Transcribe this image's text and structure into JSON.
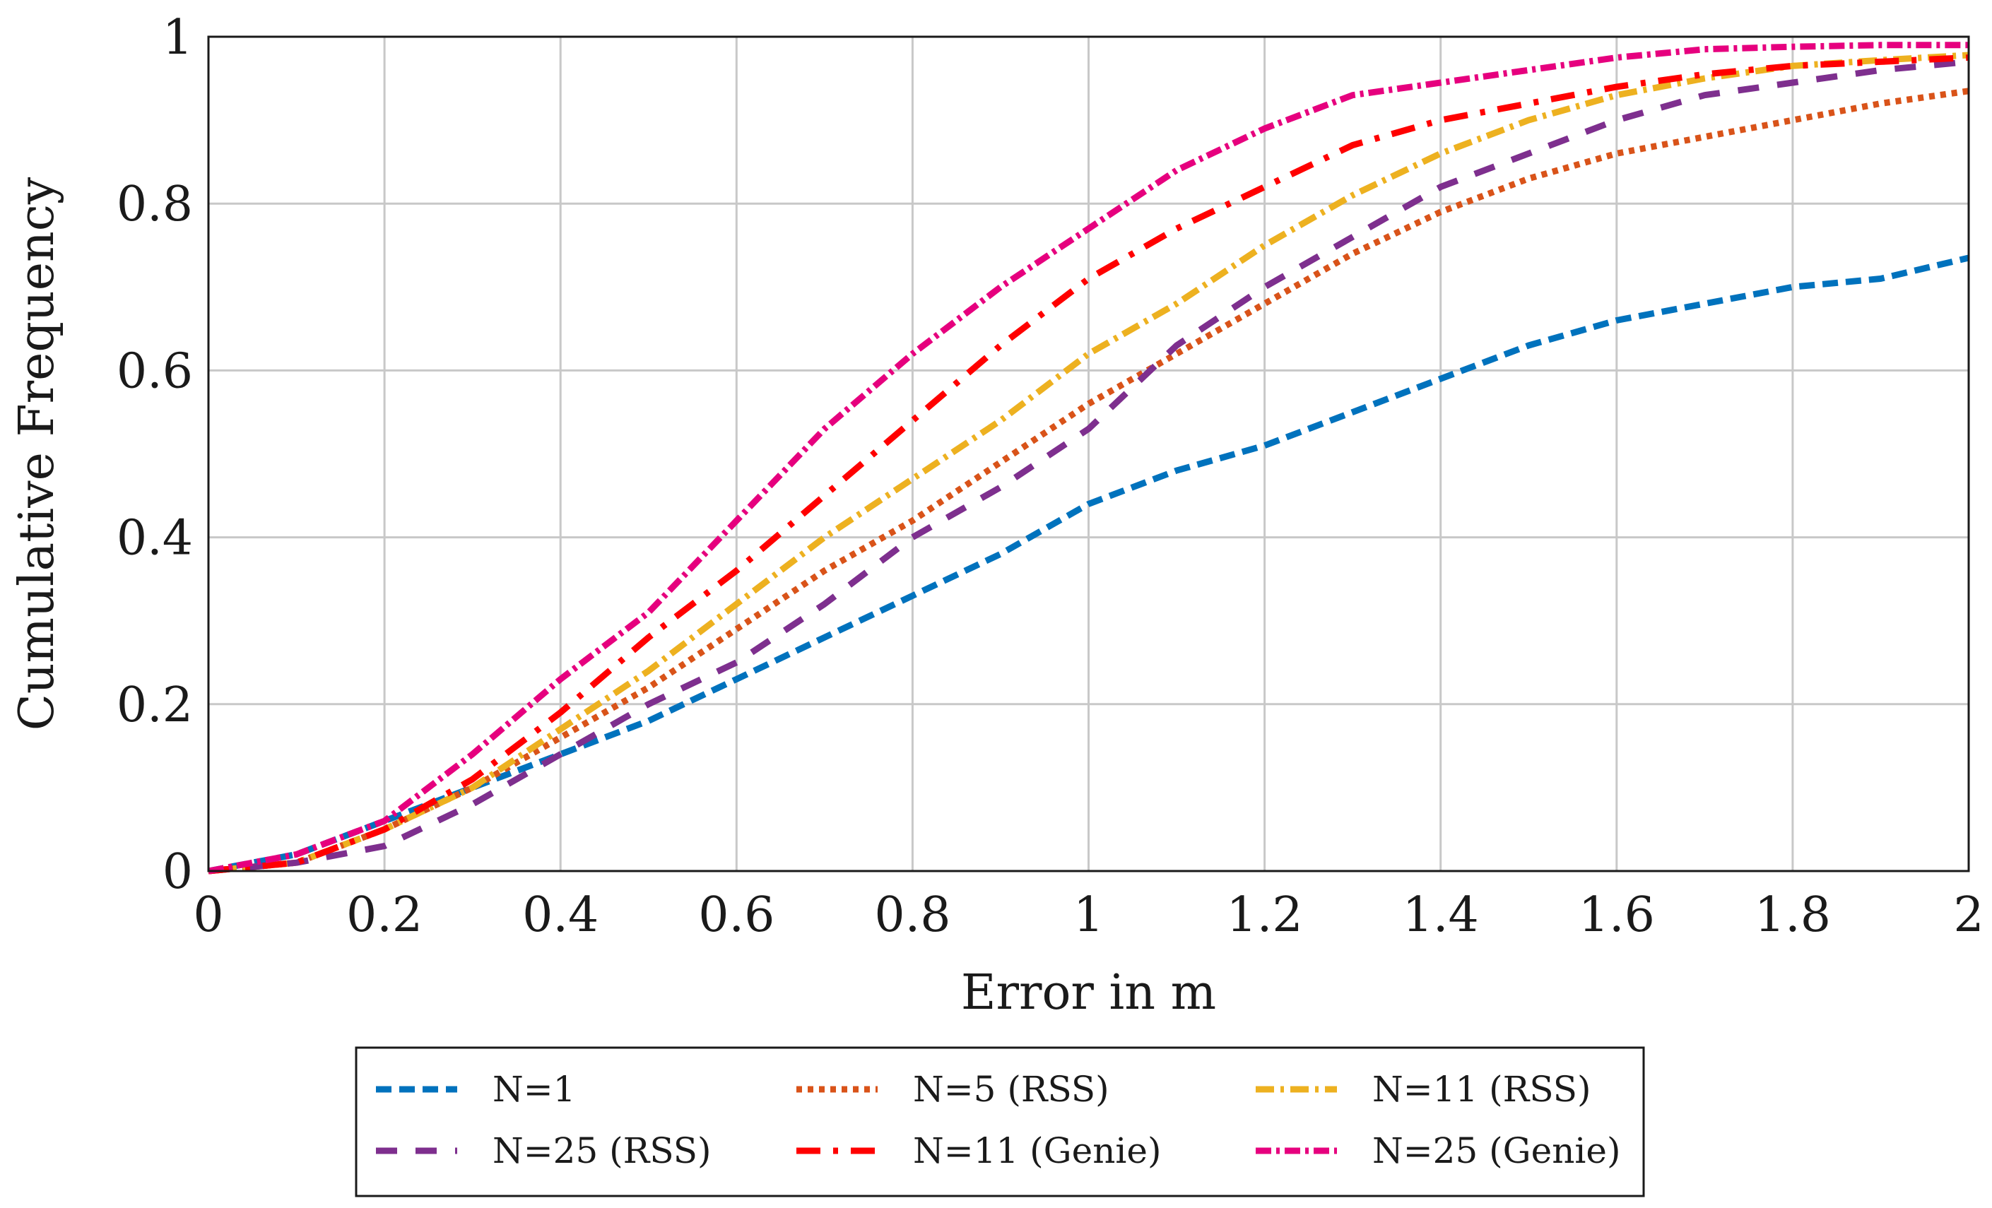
{
  "chart_data": {
    "type": "line",
    "title": "",
    "xlabel": "Error in m",
    "ylabel": "Cumulative Frequency",
    "xlim": [
      0,
      2
    ],
    "ylim": [
      0,
      1
    ],
    "grid": true,
    "legend_position": "bottom",
    "x_ticks": [
      "0",
      "0.2",
      "0.4",
      "0.6",
      "0.8",
      "1",
      "1.2",
      "1.4",
      "1.6",
      "1.8",
      "2"
    ],
    "y_ticks": [
      "0",
      "0.2",
      "0.4",
      "0.6",
      "0.8",
      "1"
    ],
    "series": [
      {
        "name": "N=1",
        "color": "#0072BD",
        "dash": "dashed",
        "x": [
          0,
          0.1,
          0.2,
          0.3,
          0.4,
          0.5,
          0.6,
          0.7,
          0.8,
          0.9,
          1.0,
          1.1,
          1.2,
          1.3,
          1.4,
          1.5,
          1.6,
          1.7,
          1.8,
          1.9,
          2.0
        ],
        "y": [
          0,
          0.02,
          0.06,
          0.1,
          0.14,
          0.18,
          0.23,
          0.28,
          0.33,
          0.38,
          0.44,
          0.48,
          0.51,
          0.55,
          0.59,
          0.63,
          0.66,
          0.68,
          0.7,
          0.71,
          0.735
        ]
      },
      {
        "name": "N=5 (RSS)",
        "color": "#D95319",
        "dash": "dotted",
        "x": [
          0,
          0.1,
          0.2,
          0.3,
          0.4,
          0.5,
          0.6,
          0.7,
          0.8,
          0.9,
          1.0,
          1.1,
          1.2,
          1.3,
          1.4,
          1.5,
          1.6,
          1.7,
          1.8,
          1.9,
          2.0
        ],
        "y": [
          0,
          0.01,
          0.05,
          0.1,
          0.16,
          0.22,
          0.29,
          0.36,
          0.42,
          0.49,
          0.56,
          0.62,
          0.68,
          0.74,
          0.79,
          0.83,
          0.86,
          0.88,
          0.9,
          0.92,
          0.935
        ]
      },
      {
        "name": "N=11 (RSS)",
        "color": "#EDB120",
        "dash": "dashdot",
        "x": [
          0,
          0.1,
          0.2,
          0.3,
          0.4,
          0.5,
          0.6,
          0.7,
          0.8,
          0.9,
          1.0,
          1.1,
          1.2,
          1.3,
          1.4,
          1.5,
          1.6,
          1.7,
          1.8,
          1.9,
          2.0
        ],
        "y": [
          0,
          0.01,
          0.05,
          0.1,
          0.17,
          0.24,
          0.32,
          0.4,
          0.47,
          0.54,
          0.62,
          0.68,
          0.75,
          0.81,
          0.86,
          0.9,
          0.93,
          0.95,
          0.965,
          0.972,
          0.978
        ]
      },
      {
        "name": "N=25 (RSS)",
        "color": "#7E2F8E",
        "dash": "longdash",
        "x": [
          0,
          0.1,
          0.2,
          0.3,
          0.4,
          0.5,
          0.6,
          0.7,
          0.8,
          0.9,
          1.0,
          1.1,
          1.2,
          1.3,
          1.4,
          1.5,
          1.6,
          1.7,
          1.8,
          1.9,
          2.0
        ],
        "y": [
          0,
          0.01,
          0.03,
          0.08,
          0.14,
          0.2,
          0.25,
          0.32,
          0.4,
          0.46,
          0.53,
          0.63,
          0.7,
          0.76,
          0.82,
          0.86,
          0.9,
          0.93,
          0.945,
          0.96,
          0.97
        ]
      },
      {
        "name": "N=11 (Genie)",
        "color": "#FF0000",
        "dash": "longdashdot",
        "x": [
          0,
          0.1,
          0.2,
          0.3,
          0.4,
          0.5,
          0.6,
          0.7,
          0.8,
          0.9,
          1.0,
          1.1,
          1.2,
          1.3,
          1.4,
          1.5,
          1.6,
          1.7,
          1.8,
          1.9,
          2.0
        ],
        "y": [
          0,
          0.01,
          0.05,
          0.11,
          0.19,
          0.28,
          0.36,
          0.45,
          0.54,
          0.63,
          0.71,
          0.77,
          0.82,
          0.87,
          0.9,
          0.92,
          0.94,
          0.955,
          0.965,
          0.97,
          0.975
        ]
      },
      {
        "name": "N=25 (Genie)",
        "color": "#E6007E",
        "dash": "dashdotdense",
        "x": [
          0,
          0.1,
          0.2,
          0.3,
          0.4,
          0.5,
          0.6,
          0.7,
          0.8,
          0.9,
          1.0,
          1.1,
          1.2,
          1.3,
          1.4,
          1.5,
          1.6,
          1.7,
          1.8,
          1.9,
          2.0
        ],
        "y": [
          0,
          0.02,
          0.06,
          0.14,
          0.23,
          0.31,
          0.42,
          0.53,
          0.62,
          0.7,
          0.77,
          0.84,
          0.89,
          0.93,
          0.945,
          0.96,
          0.975,
          0.985,
          0.988,
          0.99,
          0.99
        ]
      }
    ]
  }
}
